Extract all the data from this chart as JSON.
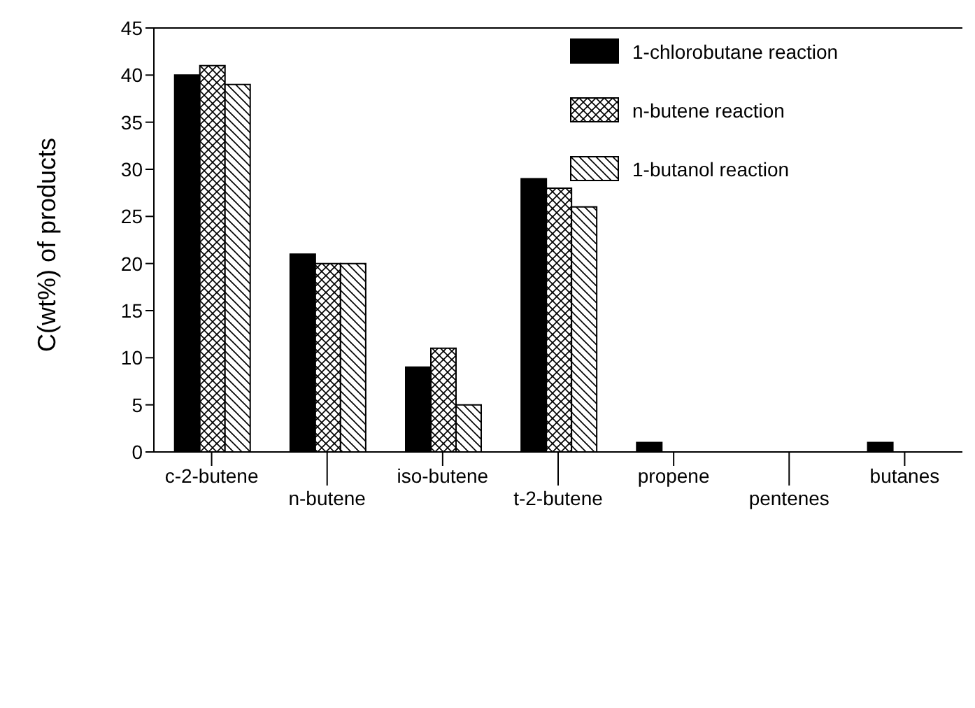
{
  "chart_data": {
    "type": "bar",
    "ylabel": "C(wt%) of products",
    "categories": [
      "c-2-butene",
      "n-butene",
      "iso-butene",
      "t-2-butene",
      "propene",
      "pentenes",
      "butanes"
    ],
    "series": [
      {
        "name": "1-chlorobutane reaction",
        "color": "#000000",
        "values": [
          40,
          21,
          9,
          29,
          1,
          0,
          1
        ]
      },
      {
        "name": "n-butene reaction",
        "color": "#000000",
        "values": [
          41,
          20,
          11,
          28,
          0,
          0,
          0
        ]
      },
      {
        "name": "1-butanol reaction",
        "color": "#000000",
        "values": [
          39,
          20,
          5,
          26,
          0,
          0,
          0
        ]
      }
    ],
    "ylim": [
      0,
      45
    ],
    "yticks": [
      0,
      5,
      10,
      15,
      20,
      25,
      30,
      35,
      40,
      45
    ],
    "legend": "top right",
    "grid": false
  }
}
